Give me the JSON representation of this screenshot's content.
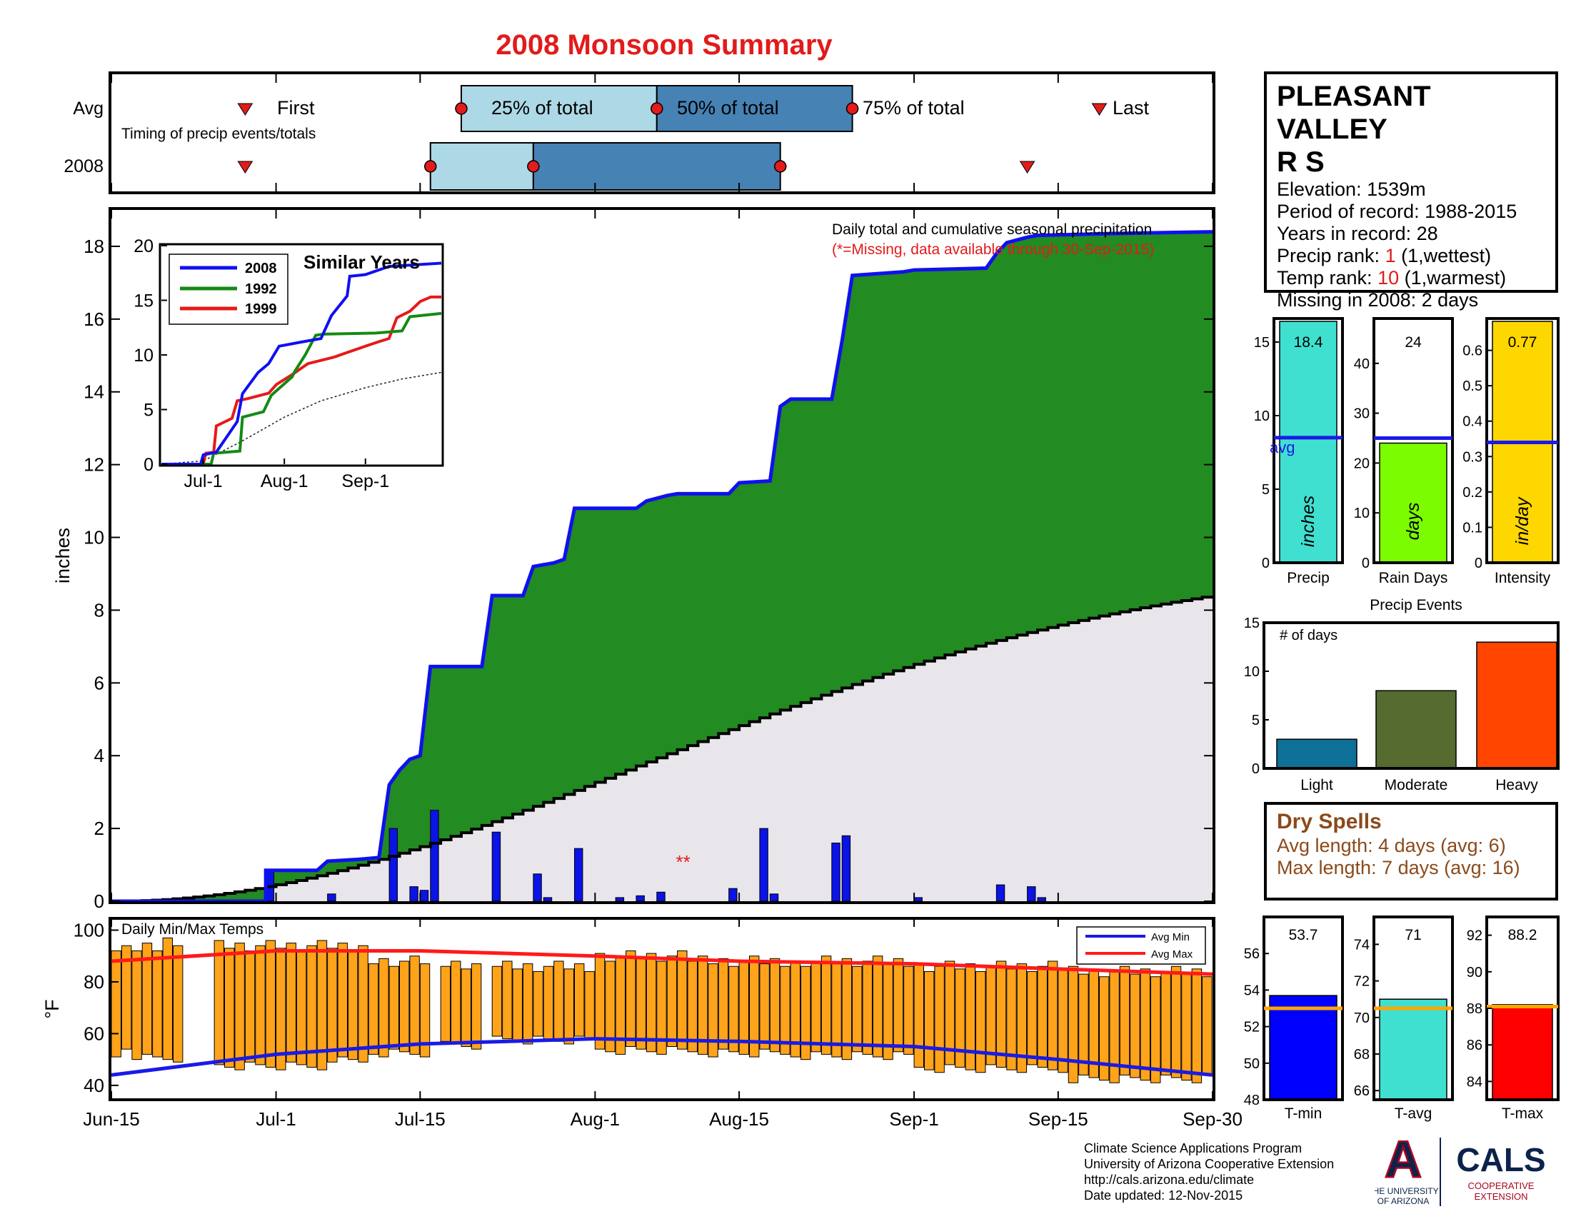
{
  "title": "2008 Monsoon Summary",
  "timing": {
    "row_labels": [
      "Avg",
      "2008"
    ],
    "caption": "Timing of precip events/totals",
    "avg_labels": {
      "first": "First",
      "p25": "25% of total",
      "p50": "50% of total",
      "p75": "75% of total",
      "last": "Last"
    },
    "avg": {
      "first": "Jun-28",
      "p25": "Jul-19",
      "p50": "Aug-7",
      "p75": "Aug-26",
      "last": "Sep-19"
    },
    "year2008": {
      "first": "Jun-28",
      "p25": "Jul-16",
      "p50": "Jul-26",
      "p75": "Aug-19",
      "last": "Sep-12"
    }
  },
  "main": {
    "ylabel": "inches",
    "caption": "Daily total and cumulative seasonal precipitation",
    "missing_note": "(*=Missing, data available through 30-Sep-2015)",
    "missing_marker": "**",
    "x_ticks": [
      "Jun-15",
      "Jul-1",
      "Jul-15",
      "Aug-1",
      "Aug-15",
      "Sep-1",
      "Sep-15",
      "Sep-30"
    ],
    "y_ticks": [
      "0",
      "2",
      "4",
      "6",
      "8",
      "10",
      "12",
      "14",
      "16",
      "18"
    ]
  },
  "inset": {
    "title": "Similar Years",
    "legend": [
      "2008",
      "1992",
      "1999"
    ],
    "x_ticks": [
      "Jul-1",
      "Aug-1",
      "Sep-1"
    ],
    "y_ticks": [
      "0",
      "5",
      "10",
      "15",
      "20"
    ]
  },
  "temps": {
    "caption": "Daily Min/Max Temps",
    "ylabel": "°F",
    "legend": [
      "Avg Min",
      "Avg Max"
    ],
    "y_ticks": [
      "40",
      "60",
      "80",
      "100"
    ]
  },
  "station": {
    "name_line1": "PLEASANT VALLEY",
    "name_line2": "R S",
    "elevation": "Elevation: 1539m",
    "period": "Period of record: 1988-2015",
    "years": "Years in record: 28",
    "precip_rank_prefix": "Precip rank: ",
    "precip_rank_value": "1",
    "precip_rank_suffix": " (1,wettest)",
    "temp_rank_prefix": "Temp rank: ",
    "temp_rank_value": "10",
    "temp_rank_suffix": " (1,warmest)",
    "missing": "Missing in 2008: 2 days"
  },
  "summary_bars": {
    "precip": {
      "value_label": "18.4",
      "unit": "inches",
      "xlabel": "Precip",
      "avg_label": "avg",
      "y_ticks": [
        "0",
        "5",
        "10",
        "15"
      ]
    },
    "rain_days": {
      "value_label": "24",
      "unit": "days",
      "xlabel": "Rain Days",
      "y_ticks": [
        "0",
        "10",
        "20",
        "30",
        "40"
      ]
    },
    "intensity": {
      "value_label": "0.77",
      "unit": "in/day",
      "xlabel": "Intensity",
      "y_ticks": [
        "0",
        "0.1",
        "0.2",
        "0.3",
        "0.4",
        "0.5",
        "0.6"
      ]
    }
  },
  "events": {
    "title": "Precip Events",
    "ylabel": "# of days",
    "categories": [
      "Light",
      "Moderate",
      "Heavy"
    ],
    "y_ticks": [
      "0",
      "5",
      "10",
      "15"
    ]
  },
  "dry_spells": {
    "title": "Dry Spells",
    "avg": "Avg length: 4 days (avg: 6)",
    "max": "Max length: 7 days (avg: 16)"
  },
  "temp_bars": {
    "tmin": {
      "value_label": "53.7",
      "xlabel": "T-min",
      "y_ticks": [
        "48",
        "50",
        "52",
        "54",
        "56"
      ]
    },
    "tavg": {
      "value_label": "71",
      "xlabel": "T-avg",
      "y_ticks": [
        "66",
        "68",
        "70",
        "72",
        "74"
      ]
    },
    "tmax": {
      "value_label": "88.2",
      "xlabel": "T-max",
      "y_ticks": [
        "84",
        "86",
        "88",
        "90",
        "92"
      ]
    }
  },
  "credits": [
    "Climate Science Applications Program",
    "University of Arizona Cooperative Extension",
    "http://cals.arizona.edu/climate",
    " Date updated: 12-Nov-2015"
  ],
  "logos": {
    "ua_letter": "A",
    "ua_line1": "THE UNIVERSITY",
    "ua_line2": "OF ARIZONA",
    "cals": "CALS",
    "coop1": "COOPERATIVE",
    "coop2": "EXTENSION"
  },
  "colors": {
    "title": "#e21b1b",
    "season_fill": "#228b22",
    "avg_fill": "#e8e6ea",
    "cumulative_line": "#1010f0",
    "daily_bars": "#0a14e6",
    "temp_bars": "#ffa31a",
    "avg_max_line": "#ff1a1a",
    "avg_min_line": "#1a1ae6",
    "precip_bar": "#40e0d0",
    "raindays_bar": "#7cfc00",
    "intensity_bar": "#ffd700",
    "light": "#0e7096",
    "moderate": "#556b2f",
    "heavy": "#ff4500",
    "tmin_bar": "#0000ff",
    "tavg_bar": "#40e0d0",
    "tmax_bar": "#ff0000",
    "avg_marker": "#ffa500",
    "dry_text": "#8b4a1a",
    "logo_blue": "#0c234b",
    "logo_red": "#ab0520"
  },
  "chart_data": [
    {
      "type": "area",
      "name": "cumulative_precipitation",
      "x_range": [
        "Jun-15",
        "Sep-30"
      ],
      "ylim": [
        0,
        19
      ],
      "cumulative_2008": [
        [
          "Jun-15",
          0
        ],
        [
          "Jun-30",
          0
        ],
        [
          "Jun-30",
          0.85
        ],
        [
          "Jul-5",
          0.85
        ],
        [
          "Jul-6",
          1.1
        ],
        [
          "Jul-9",
          1.15
        ],
        [
          "Jul-11",
          1.2
        ],
        [
          "Jul-12",
          3.2
        ],
        [
          "Jul-13",
          3.6
        ],
        [
          "Jul-14",
          3.9
        ],
        [
          "Jul-15",
          4.0
        ],
        [
          "Jul-16",
          6.45
        ],
        [
          "Jul-21",
          6.45
        ],
        [
          "Jul-22",
          8.4
        ],
        [
          "Jul-25",
          8.4
        ],
        [
          "Jul-26",
          9.2
        ],
        [
          "Jul-28",
          9.3
        ],
        [
          "Jul-29",
          9.4
        ],
        [
          "Jul-30",
          10.8
        ],
        [
          "Aug-5",
          10.8
        ],
        [
          "Aug-6",
          11.0
        ],
        [
          "Aug-8",
          11.15
        ],
        [
          "Aug-9",
          11.2
        ],
        [
          "Aug-14",
          11.2
        ],
        [
          "Aug-15",
          11.5
        ],
        [
          "Aug-18",
          11.55
        ],
        [
          "Aug-19",
          13.6
        ],
        [
          "Aug-20",
          13.8
        ],
        [
          "Aug-24",
          13.8
        ],
        [
          "Aug-25",
          15.4
        ],
        [
          "Aug-26",
          17.2
        ],
        [
          "Aug-31",
          17.3
        ],
        [
          "Sep-1",
          17.35
        ],
        [
          "Sep-8",
          17.4
        ],
        [
          "Sep-9",
          17.8
        ],
        [
          "Sep-10",
          18.1
        ],
        [
          "Sep-12",
          18.25
        ],
        [
          "Sep-13",
          18.3
        ],
        [
          "Sep-20",
          18.35
        ],
        [
          "Sep-30",
          18.4
        ]
      ],
      "cumulative_avg_end": 8.4,
      "daily_2008": [
        [
          "Jun-30",
          0.85
        ],
        [
          "Jul-6",
          0.2
        ],
        [
          "Jul-12",
          2.0
        ],
        [
          "Jul-14",
          0.4
        ],
        [
          "Jul-15",
          0.3
        ],
        [
          "Jul-16",
          2.5
        ],
        [
          "Jul-22",
          1.9
        ],
        [
          "Jul-26",
          0.75
        ],
        [
          "Jul-27",
          0.1
        ],
        [
          "Jul-30",
          1.45
        ],
        [
          "Aug-3",
          0.1
        ],
        [
          "Aug-5",
          0.15
        ],
        [
          "Aug-7",
          0.25
        ],
        [
          "Aug-14",
          0.35
        ],
        [
          "Aug-17",
          2.0
        ],
        [
          "Aug-18",
          0.2
        ],
        [
          "Aug-24",
          1.6
        ],
        [
          "Aug-25",
          1.8
        ],
        [
          "Sep-1",
          0.1
        ],
        [
          "Sep-9",
          0.45
        ],
        [
          "Sep-12",
          0.4
        ],
        [
          "Sep-13",
          0.1
        ]
      ],
      "missing_dates": [
        "Aug-9",
        "Aug-10"
      ]
    },
    {
      "type": "line",
      "name": "similar_years",
      "title": "Similar Years",
      "ylim": [
        0,
        20
      ],
      "series": [
        {
          "name": "2008",
          "color": "#1010f0",
          "points": [
            [
              "Jun-15",
              0
            ],
            [
              "Jun-30",
              0
            ],
            [
              "Jul-1",
              0.85
            ],
            [
              "Jul-6",
              1.1
            ],
            [
              "Jul-12",
              3.2
            ],
            [
              "Jul-14",
              3.9
            ],
            [
              "Jul-16",
              6.45
            ],
            [
              "Jul-22",
              8.4
            ],
            [
              "Jul-26",
              9.2
            ],
            [
              "Jul-30",
              10.8
            ],
            [
              "Aug-8",
              11.2
            ],
            [
              "Aug-15",
              11.5
            ],
            [
              "Aug-19",
              13.6
            ],
            [
              "Aug-25",
              15.4
            ],
            [
              "Aug-26",
              17.2
            ],
            [
              "Sep-1",
              17.35
            ],
            [
              "Sep-10",
              18.1
            ],
            [
              "Sep-30",
              18.4
            ]
          ]
        },
        {
          "name": "1992",
          "color": "#138a13",
          "points": [
            [
              "Jun-15",
              0
            ],
            [
              "Jul-4",
              0
            ],
            [
              "Jul-5",
              1.0
            ],
            [
              "Jul-15",
              1.2
            ],
            [
              "Jul-16",
              4.3
            ],
            [
              "Jul-24",
              4.8
            ],
            [
              "Jul-27",
              6.3
            ],
            [
              "Aug-4",
              8.0
            ],
            [
              "Aug-5",
              8.5
            ],
            [
              "Aug-9",
              10.0
            ],
            [
              "Aug-13",
              11.8
            ],
            [
              "Aug-16",
              11.9
            ],
            [
              "Sep-5",
              12.0
            ],
            [
              "Sep-15",
              12.2
            ],
            [
              "Sep-18",
              13.5
            ],
            [
              "Sep-30",
              13.8
            ]
          ]
        },
        {
          "name": "1999",
          "color": "#e61a1a",
          "points": [
            [
              "Jun-15",
              0
            ],
            [
              "Jul-1",
              0
            ],
            [
              "Jul-2",
              1.0
            ],
            [
              "Jul-5",
              1.1
            ],
            [
              "Jul-6",
              3.5
            ],
            [
              "Jul-12",
              4.2
            ],
            [
              "Jul-14",
              5.8
            ],
            [
              "Jul-18",
              6.0
            ],
            [
              "Jul-26",
              6.5
            ],
            [
              "Jul-29",
              7.3
            ],
            [
              "Aug-4",
              8.2
            ],
            [
              "Aug-10",
              9.2
            ],
            [
              "Aug-20",
              9.8
            ],
            [
              "Aug-26",
              10.3
            ],
            [
              "Sep-1",
              10.8
            ],
            [
              "Sep-6",
              11.2
            ],
            [
              "Sep-10",
              11.5
            ],
            [
              "Sep-13",
              13.4
            ],
            [
              "Sep-18",
              14.0
            ],
            [
              "Sep-22",
              14.9
            ],
            [
              "Sep-26",
              15.3
            ],
            [
              "Sep-30",
              15.3
            ]
          ]
        },
        {
          "name": "avg",
          "color": "#222222",
          "points": [
            [
              "Jun-15",
              0
            ],
            [
              "Jul-1",
              0.3
            ],
            [
              "Jul-15",
              2.0
            ],
            [
              "Aug-1",
              4.3
            ],
            [
              "Aug-15",
              5.8
            ],
            [
              "Sep-1",
              7.0
            ],
            [
              "Sep-15",
              7.8
            ],
            [
              "Sep-30",
              8.4
            ]
          ]
        }
      ]
    },
    {
      "type": "bar",
      "name": "daily_min_max_temps",
      "ylim": [
        35,
        100
      ],
      "segments": [
        {
          "start": "Jun-15",
          "end": "Jun-16",
          "min": 52,
          "max": 94
        },
        {
          "start": "Jun-17",
          "end": "Jun-17",
          "min": 48,
          "max": 94
        },
        {
          "start": "Jun-18",
          "end": "Jun-19",
          "min": 50,
          "max": 94
        },
        {
          "start": "Jun-20",
          "end": "Jun-21",
          "min": 49,
          "max": 96
        },
        {
          "start": "Jun-25",
          "end": "Jul-6",
          "min": 47,
          "max": 94
        },
        {
          "start": "Jul-7",
          "end": "Jul-9",
          "min": 49,
          "max": 93
        },
        {
          "start": "Jul-10",
          "end": "Jul-15",
          "min": 52,
          "max": 88
        },
        {
          "start": "Jul-17",
          "end": "Jul-20",
          "min": 55,
          "max": 87
        },
        {
          "start": "Jul-22",
          "end": "Jul-31",
          "min": 57,
          "max": 86
        },
        {
          "start": "Aug-1",
          "end": "Aug-9",
          "min": 53,
          "max": 90
        },
        {
          "start": "Aug-10",
          "end": "Aug-20",
          "min": 52,
          "max": 88
        },
        {
          "start": "Aug-21",
          "end": "Aug-31",
          "min": 51,
          "max": 88
        },
        {
          "start": "Sep-1",
          "end": "Sep-15",
          "min": 46,
          "max": 86
        },
        {
          "start": "Sep-16",
          "end": "Sep-29",
          "min": 42,
          "max": 84
        }
      ],
      "avg_max": [
        [
          "Jun-15",
          88
        ],
        [
          "Jul-1",
          92
        ],
        [
          "Jul-15",
          92
        ],
        [
          "Aug-1",
          90
        ],
        [
          "Aug-15",
          88
        ],
        [
          "Sep-1",
          87
        ],
        [
          "Sep-15",
          85
        ],
        [
          "Sep-30",
          83
        ]
      ],
      "avg_min": [
        [
          "Jun-15",
          44
        ],
        [
          "Jul-1",
          52
        ],
        [
          "Jul-15",
          56
        ],
        [
          "Aug-1",
          58
        ],
        [
          "Aug-15",
          57
        ],
        [
          "Sep-1",
          55
        ],
        [
          "Sep-15",
          50
        ],
        [
          "Sep-30",
          44
        ]
      ]
    },
    {
      "type": "bar",
      "name": "season_totals",
      "panels": [
        {
          "name": "Precip",
          "value": 18.4,
          "avg": 8.5,
          "ylim": [
            0,
            16.6
          ],
          "color": "#40e0d0"
        },
        {
          "name": "Rain Days",
          "value": 24,
          "avg": 25,
          "ylim": [
            0,
            49
          ],
          "color": "#7cfc00"
        },
        {
          "name": "Intensity",
          "value": 0.77,
          "avg": 0.34,
          "ylim": [
            0,
            0.69
          ],
          "color": "#ffd700"
        }
      ]
    },
    {
      "type": "bar",
      "name": "precip_events",
      "title": "Precip Events",
      "categories": [
        "Light",
        "Moderate",
        "Heavy"
      ],
      "values": [
        3,
        8,
        13
      ],
      "ylim": [
        0,
        15
      ]
    },
    {
      "type": "bar",
      "name": "temperature_means",
      "panels": [
        {
          "name": "T-min",
          "value": 53.7,
          "avg": 53,
          "ylim": [
            48,
            58
          ]
        },
        {
          "name": "T-avg",
          "value": 71,
          "avg": 70.5,
          "ylim": [
            65.5,
            75.5
          ]
        },
        {
          "name": "T-max",
          "value": 88.2,
          "avg": 88.1,
          "ylim": [
            83,
            93
          ]
        }
      ]
    }
  ]
}
